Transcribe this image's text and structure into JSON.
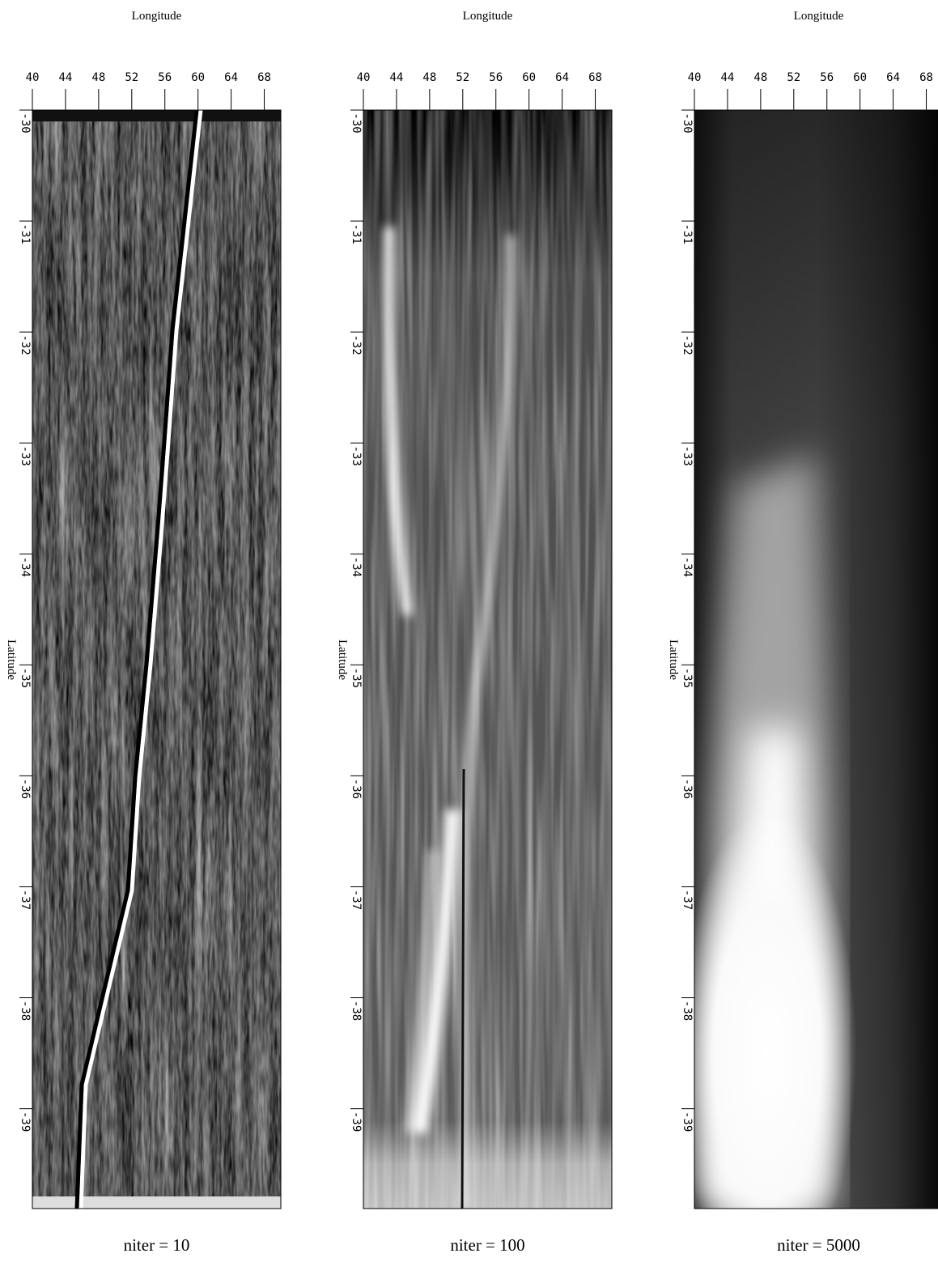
{
  "chart_data": [
    {
      "type": "image",
      "title": "Longitude",
      "ylabel": "Latitude",
      "caption": "niter = 10",
      "xlim": [
        40,
        70
      ],
      "xticks": [
        40,
        44,
        48,
        52,
        56,
        60,
        64,
        68
      ],
      "ylim": [
        -30,
        -39.9
      ],
      "yticks": [
        -30,
        -31,
        -32,
        -33,
        -34,
        -35,
        -36,
        -37,
        -38,
        -39
      ]
    },
    {
      "type": "image",
      "title": "Longitude",
      "ylabel": "Latitude",
      "caption": "niter = 100",
      "xlim": [
        40,
        70
      ],
      "xticks": [
        40,
        44,
        48,
        52,
        56,
        60,
        64,
        68
      ],
      "ylim": [
        -30,
        -39.9
      ],
      "yticks": [
        -30,
        -31,
        -32,
        -33,
        -34,
        -35,
        -36,
        -37,
        -38,
        -39
      ]
    },
    {
      "type": "image",
      "title": "Longitude",
      "ylabel": "Latitude",
      "caption": "niter = 5000",
      "xlim": [
        40,
        70
      ],
      "xticks": [
        40,
        44,
        48,
        52,
        56,
        60,
        64,
        68
      ],
      "ylim": [
        -30,
        -39.9
      ],
      "yticks": [
        -30,
        -31,
        -32,
        -33,
        -34,
        -35,
        -36,
        -37,
        -38,
        -39
      ]
    }
  ]
}
